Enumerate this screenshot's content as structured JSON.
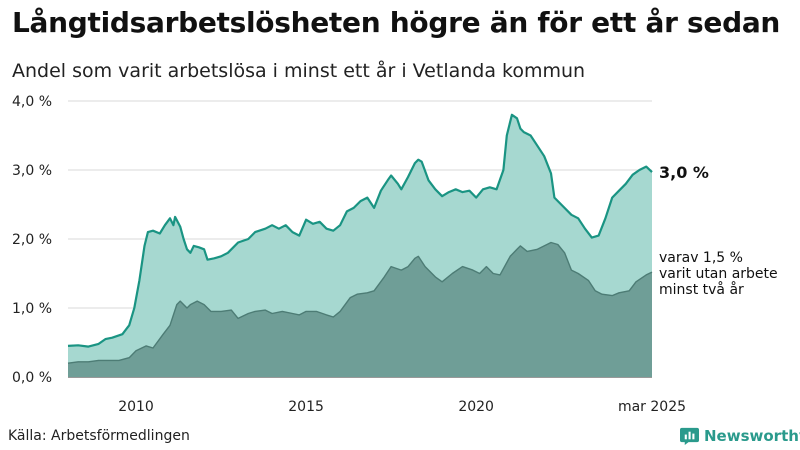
{
  "header": {
    "title": "Långtidsarbetslösheten högre än för ett år sedan",
    "subtitle": "Andel som varit arbetslösa i minst ett år i Vetlanda kommun"
  },
  "footer": {
    "source": "Källa: Arbetsförmedlingen",
    "brand": "Newsworthy"
  },
  "colors": {
    "series1_fill": "#a6d8d0",
    "series1_line": "#1a9483",
    "series2_fill": "#6f9e97",
    "series2_line": "#4d7c75",
    "gridline": "#d9d9d9"
  },
  "chart_data": {
    "type": "area",
    "ylim": [
      0,
      4
    ],
    "yticks": [
      0,
      1,
      2,
      3,
      4
    ],
    "ytick_labels": [
      "0,0 %",
      "1,0 %",
      "2,0 %",
      "3,0 %",
      "4,0 %"
    ],
    "xticks": [
      2010,
      2015,
      2020,
      2025.17
    ],
    "xtick_labels": [
      "2010",
      "2015",
      "2020",
      "mar 2025"
    ],
    "grid": "horizontal",
    "end_label": "3,0 %",
    "annotation": [
      "varav 1,5 %",
      "varit utan arbete",
      "minst två år"
    ],
    "series": [
      {
        "name": "Minst ett år",
        "points": [
          [
            2008.0,
            0.45
          ],
          [
            2008.3,
            0.46
          ],
          [
            2008.6,
            0.44
          ],
          [
            2008.9,
            0.48
          ],
          [
            2009.1,
            0.55
          ],
          [
            2009.3,
            0.57
          ],
          [
            2009.6,
            0.62
          ],
          [
            2009.8,
            0.75
          ],
          [
            2009.95,
            1.0
          ],
          [
            2010.1,
            1.4
          ],
          [
            2010.25,
            1.9
          ],
          [
            2010.35,
            2.1
          ],
          [
            2010.5,
            2.12
          ],
          [
            2010.7,
            2.08
          ],
          [
            2010.85,
            2.2
          ],
          [
            2011.0,
            2.3
          ],
          [
            2011.1,
            2.2
          ],
          [
            2011.15,
            2.32
          ],
          [
            2011.3,
            2.18
          ],
          [
            2011.4,
            2.0
          ],
          [
            2011.5,
            1.85
          ],
          [
            2011.6,
            1.8
          ],
          [
            2011.7,
            1.9
          ],
          [
            2011.85,
            1.88
          ],
          [
            2012.0,
            1.85
          ],
          [
            2012.1,
            1.7
          ],
          [
            2012.3,
            1.72
          ],
          [
            2012.5,
            1.75
          ],
          [
            2012.7,
            1.8
          ],
          [
            2013.0,
            1.95
          ],
          [
            2013.3,
            2.0
          ],
          [
            2013.5,
            2.1
          ],
          [
            2013.8,
            2.15
          ],
          [
            2014.0,
            2.2
          ],
          [
            2014.2,
            2.15
          ],
          [
            2014.4,
            2.2
          ],
          [
            2014.6,
            2.1
          ],
          [
            2014.8,
            2.05
          ],
          [
            2015.0,
            2.28
          ],
          [
            2015.2,
            2.22
          ],
          [
            2015.4,
            2.25
          ],
          [
            2015.6,
            2.15
          ],
          [
            2015.8,
            2.12
          ],
          [
            2016.0,
            2.2
          ],
          [
            2016.2,
            2.4
          ],
          [
            2016.4,
            2.45
          ],
          [
            2016.6,
            2.55
          ],
          [
            2016.8,
            2.6
          ],
          [
            2017.0,
            2.45
          ],
          [
            2017.2,
            2.7
          ],
          [
            2017.4,
            2.85
          ],
          [
            2017.5,
            2.92
          ],
          [
            2017.7,
            2.8
          ],
          [
            2017.8,
            2.72
          ],
          [
            2018.0,
            2.9
          ],
          [
            2018.2,
            3.1
          ],
          [
            2018.3,
            3.15
          ],
          [
            2018.4,
            3.12
          ],
          [
            2018.6,
            2.85
          ],
          [
            2018.8,
            2.72
          ],
          [
            2019.0,
            2.62
          ],
          [
            2019.2,
            2.68
          ],
          [
            2019.4,
            2.72
          ],
          [
            2019.6,
            2.68
          ],
          [
            2019.8,
            2.7
          ],
          [
            2020.0,
            2.6
          ],
          [
            2020.2,
            2.72
          ],
          [
            2020.4,
            2.75
          ],
          [
            2020.6,
            2.72
          ],
          [
            2020.8,
            3.0
          ],
          [
            2020.9,
            3.5
          ],
          [
            2021.05,
            3.8
          ],
          [
            2021.2,
            3.75
          ],
          [
            2021.3,
            3.6
          ],
          [
            2021.4,
            3.55
          ],
          [
            2021.6,
            3.5
          ],
          [
            2021.8,
            3.35
          ],
          [
            2022.0,
            3.2
          ],
          [
            2022.2,
            2.95
          ],
          [
            2022.3,
            2.6
          ],
          [
            2022.5,
            2.5
          ],
          [
            2022.8,
            2.35
          ],
          [
            2023.0,
            2.3
          ],
          [
            2023.2,
            2.15
          ],
          [
            2023.4,
            2.02
          ],
          [
            2023.6,
            2.05
          ],
          [
            2023.8,
            2.3
          ],
          [
            2024.0,
            2.6
          ],
          [
            2024.2,
            2.7
          ],
          [
            2024.4,
            2.8
          ],
          [
            2024.6,
            2.93
          ],
          [
            2024.8,
            3.0
          ],
          [
            2025.0,
            3.05
          ],
          [
            2025.17,
            2.97
          ]
        ]
      },
      {
        "name": "Minst två år",
        "points": [
          [
            2008.0,
            0.2
          ],
          [
            2008.3,
            0.22
          ],
          [
            2008.6,
            0.22
          ],
          [
            2008.9,
            0.24
          ],
          [
            2009.2,
            0.24
          ],
          [
            2009.5,
            0.24
          ],
          [
            2009.8,
            0.28
          ],
          [
            2010.0,
            0.38
          ],
          [
            2010.3,
            0.45
          ],
          [
            2010.5,
            0.42
          ],
          [
            2010.8,
            0.62
          ],
          [
            2011.0,
            0.75
          ],
          [
            2011.2,
            1.05
          ],
          [
            2011.3,
            1.1
          ],
          [
            2011.5,
            1.0
          ],
          [
            2011.6,
            1.05
          ],
          [
            2011.8,
            1.1
          ],
          [
            2012.0,
            1.05
          ],
          [
            2012.2,
            0.95
          ],
          [
            2012.5,
            0.95
          ],
          [
            2012.8,
            0.97
          ],
          [
            2013.0,
            0.85
          ],
          [
            2013.3,
            0.92
          ],
          [
            2013.5,
            0.95
          ],
          [
            2013.8,
            0.97
          ],
          [
            2014.0,
            0.92
          ],
          [
            2014.3,
            0.95
          ],
          [
            2014.6,
            0.92
          ],
          [
            2014.8,
            0.9
          ],
          [
            2015.0,
            0.95
          ],
          [
            2015.3,
            0.95
          ],
          [
            2015.6,
            0.9
          ],
          [
            2015.8,
            0.87
          ],
          [
            2016.0,
            0.95
          ],
          [
            2016.3,
            1.15
          ],
          [
            2016.5,
            1.2
          ],
          [
            2016.8,
            1.22
          ],
          [
            2017.0,
            1.25
          ],
          [
            2017.3,
            1.45
          ],
          [
            2017.5,
            1.6
          ],
          [
            2017.8,
            1.55
          ],
          [
            2018.0,
            1.6
          ],
          [
            2018.2,
            1.72
          ],
          [
            2018.3,
            1.75
          ],
          [
            2018.5,
            1.6
          ],
          [
            2018.8,
            1.45
          ],
          [
            2019.0,
            1.38
          ],
          [
            2019.3,
            1.5
          ],
          [
            2019.6,
            1.6
          ],
          [
            2019.9,
            1.55
          ],
          [
            2020.1,
            1.5
          ],
          [
            2020.3,
            1.6
          ],
          [
            2020.5,
            1.5
          ],
          [
            2020.7,
            1.48
          ],
          [
            2021.0,
            1.75
          ],
          [
            2021.2,
            1.85
          ],
          [
            2021.3,
            1.9
          ],
          [
            2021.5,
            1.82
          ],
          [
            2021.8,
            1.85
          ],
          [
            2022.0,
            1.9
          ],
          [
            2022.2,
            1.95
          ],
          [
            2022.4,
            1.92
          ],
          [
            2022.6,
            1.8
          ],
          [
            2022.8,
            1.55
          ],
          [
            2023.0,
            1.5
          ],
          [
            2023.3,
            1.4
          ],
          [
            2023.5,
            1.25
          ],
          [
            2023.7,
            1.2
          ],
          [
            2024.0,
            1.18
          ],
          [
            2024.2,
            1.22
          ],
          [
            2024.5,
            1.25
          ],
          [
            2024.7,
            1.38
          ],
          [
            2025.0,
            1.48
          ],
          [
            2025.17,
            1.52
          ]
        ]
      }
    ]
  }
}
